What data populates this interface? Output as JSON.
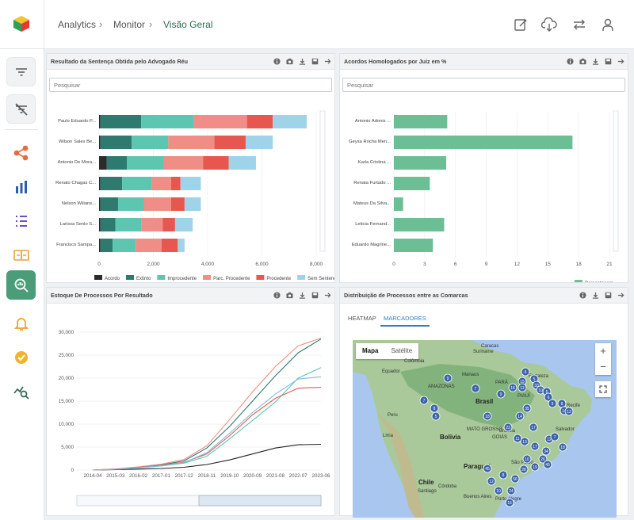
{
  "breadcrumb": [
    "Analytics",
    "Monitor",
    "Visão Geral"
  ],
  "colors": {
    "acordo": "#2b2b2b",
    "extinto": "#2f7a6f",
    "improcedente": "#5cc6b1",
    "parc_procedente": "#ef8d86",
    "procedente": "#e8574f",
    "sem_sentenca": "#9fd3ea",
    "accent": "#4a9d78",
    "bar_green": "#6cbe95"
  },
  "icons": {
    "topbar": [
      "edit-icon",
      "cloud-download-icon",
      "swap-icon",
      "user-icon"
    ],
    "sidebar": [
      "filter-icon",
      "filter-clear-icon",
      "share-icon",
      "bar-chart-icon",
      "list-icon",
      "compare-icon",
      "search-analytics-icon",
      "bell-icon",
      "verified-badge-icon",
      "trend-search-icon"
    ]
  },
  "panel1": {
    "title": "Resultado da Sentença Obtida pelo Advogado Réu",
    "search_placeholder": "Pesquisar",
    "chart_data": {
      "type": "bar",
      "orientation": "horizontal",
      "stacked": true,
      "categories": [
        "Paulo Eduardo P...",
        "Wilson Sales Be...",
        "Antonio De Mora...",
        "Renato Chagas C...",
        "Nelson Wilians...",
        "Larissa Senlo S...",
        "Francisco Sampa..."
      ],
      "series": [
        {
          "name": "Acordo",
          "values": [
            50,
            50,
            280,
            50,
            50,
            50,
            50
          ]
        },
        {
          "name": "Extinto",
          "values": [
            1500,
            1150,
            750,
            800,
            650,
            550,
            450
          ]
        },
        {
          "name": "Improcedente",
          "values": [
            1950,
            1350,
            1350,
            1100,
            950,
            950,
            850
          ]
        },
        {
          "name": "Parc. Procedente",
          "values": [
            1950,
            1700,
            1450,
            700,
            1000,
            800,
            950
          ]
        },
        {
          "name": "Procedente",
          "values": [
            950,
            1150,
            950,
            350,
            500,
            450,
            600
          ]
        },
        {
          "name": "Sem Sentença",
          "values": [
            1250,
            1000,
            1000,
            750,
            600,
            650,
            250
          ]
        }
      ],
      "xticks": [
        "0",
        "2,000",
        "4,000",
        "6,000",
        "8,000"
      ],
      "xlim": [
        0,
        8000
      ]
    }
  },
  "panel2": {
    "title": "Acordos Homologados por Juiz em %",
    "search_placeholder": "Pesquisar",
    "chart_data": {
      "type": "bar",
      "orientation": "horizontal",
      "categories": [
        "Antonio Adonis ...",
        "Geysa Rocha Men...",
        "Karla Cristina ...",
        "Renata Furtado ...",
        "Mateus Da Silva...",
        "Leticia Fernand...",
        "Eduardo Magrine..."
      ],
      "series": [
        {
          "name": "Porcentagem",
          "values": [
            5.2,
            17.4,
            5.1,
            3.5,
            0.9,
            4.9,
            3.8
          ]
        }
      ],
      "xticks": [
        "0",
        "3",
        "6",
        "9",
        "12",
        "15",
        "18",
        "21"
      ],
      "xlim": [
        0,
        21
      ]
    }
  },
  "panel3": {
    "title": "Estoque De Processos Por Resultado",
    "chart_data": {
      "type": "line",
      "x": [
        "2014-04",
        "2015-03",
        "2016-02",
        "2017-01",
        "2017-12",
        "2018-11",
        "2019-10",
        "2020-09",
        "2021-08",
        "2022-07",
        "2023-06"
      ],
      "ylim": [
        0,
        30000
      ],
      "yticks": [
        "0",
        "5,000",
        "10,000",
        "15,000",
        "20,000",
        "25,000",
        "30,000"
      ],
      "series": [
        {
          "name": "Acordo",
          "color": "#222222",
          "values": [
            0,
            80,
            200,
            350,
            600,
            1200,
            2200,
            3500,
            4800,
            5500,
            5600
          ]
        },
        {
          "name": "Extinto",
          "color": "#2f7a6f",
          "values": [
            0,
            200,
            600,
            1100,
            2000,
            4800,
            9500,
            15000,
            20500,
            25500,
            28500
          ]
        },
        {
          "name": "Improcedente",
          "color": "#5cc6b1",
          "values": [
            0,
            150,
            450,
            900,
            1500,
            3000,
            6800,
            10800,
            14800,
            20000,
            22300
          ]
        },
        {
          "name": "Parc. Procedente",
          "color": "#ef8d86",
          "values": [
            0,
            250,
            700,
            1300,
            2300,
            5300,
            11000,
            17000,
            22500,
            27000,
            28700
          ]
        },
        {
          "name": "Procedente",
          "color": "#e8574f",
          "values": [
            0,
            200,
            550,
            1000,
            1700,
            3500,
            7500,
            12000,
            15600,
            17800,
            18000
          ]
        },
        {
          "name": "Sem Sentença",
          "color": "#7fbde0",
          "values": [
            0,
            180,
            500,
            950,
            1600,
            3800,
            8000,
            12500,
            16500,
            19800,
            20300
          ]
        }
      ]
    }
  },
  "panel4": {
    "title": "Distribuição de Processos entre as Comarcas",
    "tabs": [
      "HEATMAP",
      "MARCADORES"
    ],
    "map_types": [
      "Mapa",
      "Satélite"
    ],
    "zoom_in": "+",
    "zoom_out": "−",
    "labels": {
      "countries": [
        "Brasil",
        "Bolivia",
        "Paraguai",
        "Chile"
      ],
      "cities": [
        "Caracas",
        "Colômbia",
        "Suriname",
        "Equador",
        "Manaus",
        "AMAZONAS",
        "Fortaleza",
        "PARÁ",
        "PIAUÍ",
        "MATO GROSSO",
        "Brasília",
        "GOIÁS",
        "São Paulo",
        "Porto Alegre",
        "Santiago",
        "Córdoba",
        "Buenos Aires",
        "Peru",
        "Lima",
        "Salvador",
        "Recife"
      ]
    },
    "markers": [
      "9",
      "6",
      "5",
      "15",
      "7",
      "8",
      "5",
      "7",
      "9",
      "16",
      "12",
      "33",
      "10",
      "5",
      "6",
      "9",
      "8",
      "14",
      "12",
      "18",
      "35",
      "14",
      "23",
      "17",
      "11",
      "13",
      "12",
      "34",
      "17",
      "10",
      "26",
      "28",
      "19",
      "8",
      "56",
      "24",
      "16",
      "10",
      "12",
      "45",
      "7",
      "18",
      "45"
    ]
  }
}
